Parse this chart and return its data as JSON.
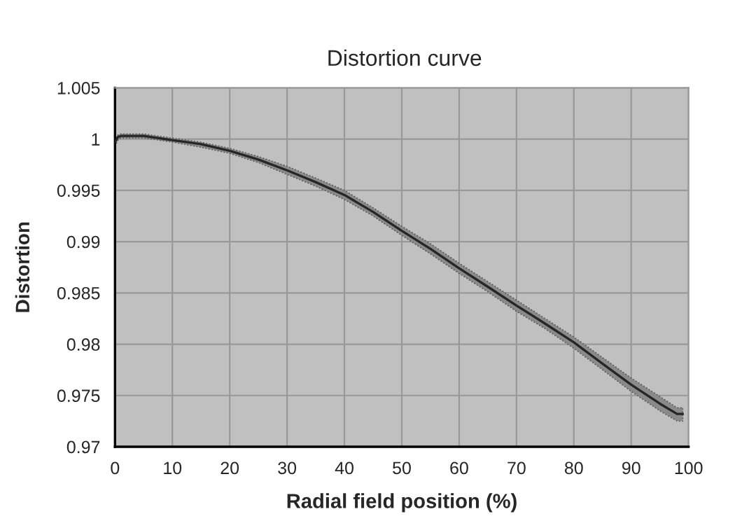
{
  "chart_data": {
    "type": "line",
    "title": "Distortion curve",
    "xlabel": "Radial field position (%)",
    "ylabel": "Distortion",
    "series": [
      {
        "color": "#262626",
        "x": [
          0,
          0.5,
          1,
          3,
          5,
          10,
          15,
          20,
          25,
          30,
          35,
          40,
          45,
          50,
          55,
          60,
          65,
          70,
          75,
          80,
          85,
          90,
          95,
          98,
          99
        ],
        "values": [
          0.9997,
          1.0002,
          1.0003,
          1.0003,
          1.0003,
          0.9999,
          0.9995,
          0.99885,
          0.998,
          0.99695,
          0.9958,
          0.99455,
          0.9929,
          0.99105,
          0.9893,
          0.9874,
          0.9856,
          0.98377,
          0.982,
          0.98018,
          0.9781,
          0.97605,
          0.9742,
          0.9732,
          0.9732
        ],
        "lower": [
          0.9993,
          0.9999,
          1.0001,
          1.0001,
          1.0001,
          0.9997,
          0.9992,
          0.9986,
          0.9977,
          0.99655,
          0.9954,
          0.9941,
          0.9925,
          0.9906,
          0.9888,
          0.9869,
          0.9851,
          0.9832,
          0.9815,
          0.9796,
          0.9775,
          0.9754,
          0.9735,
          0.9725,
          0.9725
        ],
        "upper": [
          0.9999,
          1.0004,
          1.0005,
          1.0005,
          1.0005,
          1.0001,
          0.9997,
          0.9991,
          0.9983,
          0.99735,
          0.9962,
          0.995,
          0.9933,
          0.9915,
          0.9898,
          0.9879,
          0.9861,
          0.9843,
          0.9825,
          0.9807,
          0.9787,
          0.9767,
          0.9749,
          0.9738,
          0.9738
        ]
      }
    ],
    "xlim": [
      0,
      100
    ],
    "xticks": [
      0,
      10,
      20,
      30,
      40,
      50,
      60,
      70,
      80,
      90,
      100
    ],
    "ylim": [
      0.97,
      1.005
    ],
    "yticks": [
      0.97,
      0.975,
      0.98,
      0.985,
      0.99,
      0.995,
      1,
      1.005
    ],
    "grid": true,
    "marker": "none",
    "line_style": "solid"
  }
}
